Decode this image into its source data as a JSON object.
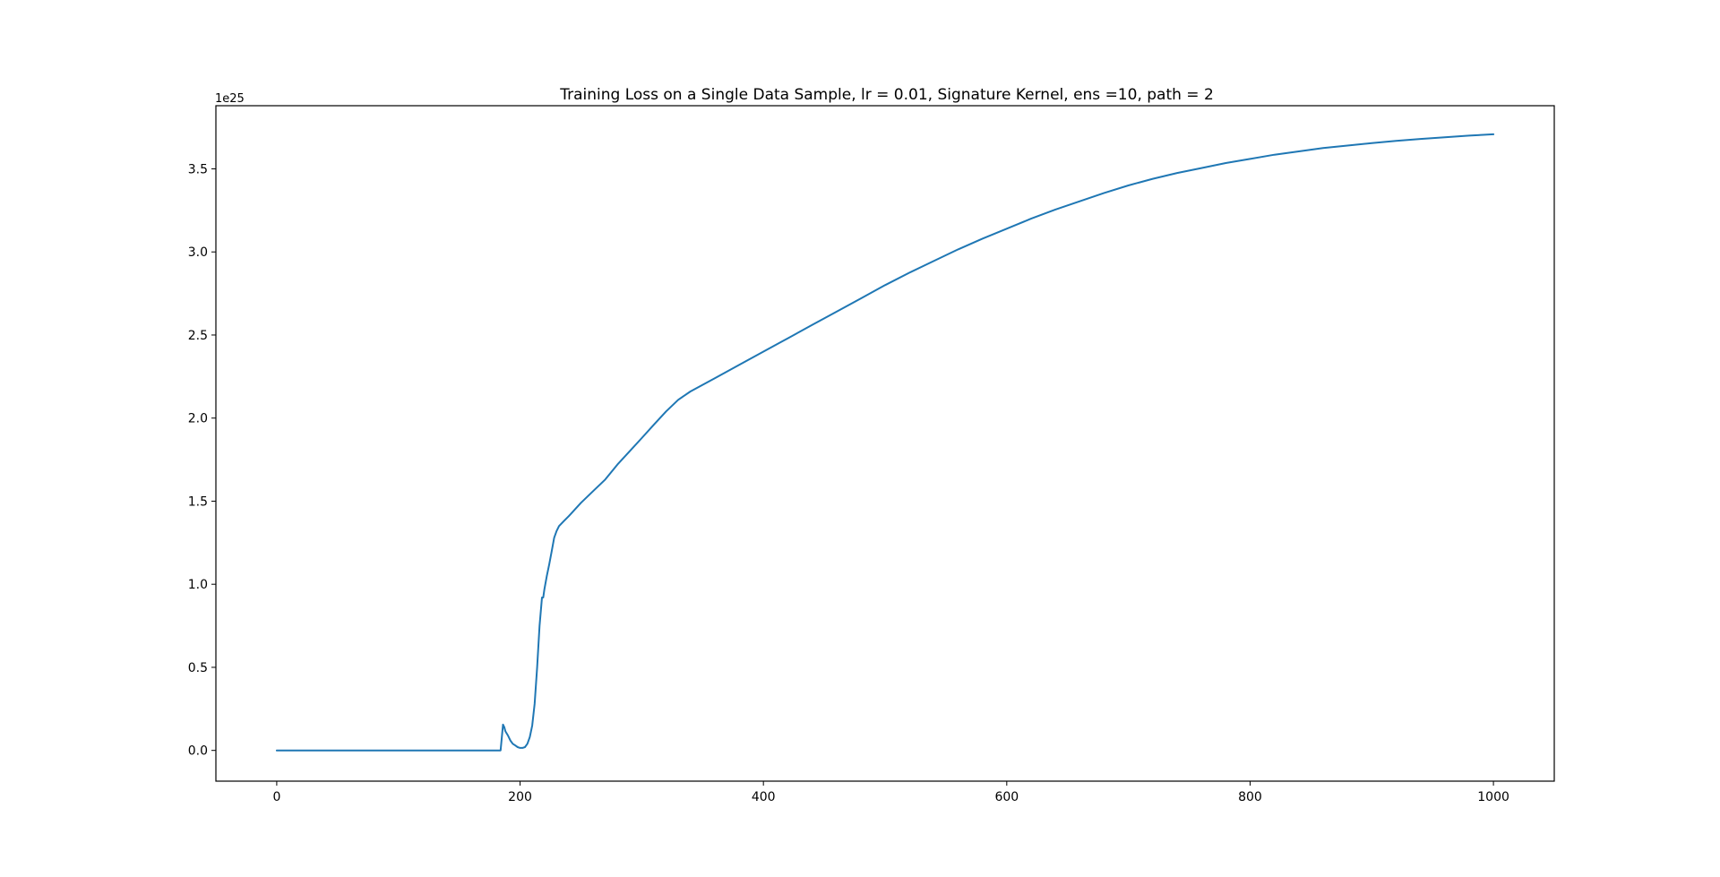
{
  "chart_data": {
    "type": "line",
    "title": "Training Loss on a Single Data Sample, lr = 0.01, Signature Kernel, ens =10, path = 2",
    "xlabel": "",
    "ylabel": "",
    "y_offset_label": "1e25",
    "xlim": [
      -50,
      1050
    ],
    "ylim": [
      -0.185,
      3.88
    ],
    "xticks": [
      0,
      200,
      400,
      600,
      800,
      1000
    ],
    "xtick_labels": [
      "0",
      "200",
      "400",
      "600",
      "800",
      "1000"
    ],
    "yticks": [
      0.0,
      0.5,
      1.0,
      1.5,
      2.0,
      2.5,
      3.0,
      3.5
    ],
    "ytick_labels": [
      "0.0",
      "0.5",
      "1.0",
      "1.5",
      "2.0",
      "2.5",
      "3.0",
      "3.5"
    ],
    "grid": false,
    "legend": "none",
    "colors": {
      "line": "#1f77b4",
      "axes": "#000000",
      "background": "#ffffff"
    },
    "series": [
      {
        "x": [
          0,
          50,
          100,
          150,
          184,
          185,
          186,
          187,
          188,
          190,
          192,
          194,
          196,
          198,
          200,
          202,
          204,
          206,
          208,
          210,
          212,
          214,
          216,
          218,
          219,
          220,
          222,
          224,
          226,
          228,
          230,
          232,
          236,
          240,
          250,
          260,
          270,
          280,
          290,
          300,
          310,
          320,
          330,
          340,
          350,
          360,
          380,
          400,
          420,
          440,
          450,
          460,
          480,
          500,
          520,
          540,
          560,
          580,
          600,
          620,
          640,
          660,
          680,
          700,
          720,
          740,
          760,
          780,
          800,
          820,
          840,
          860,
          880,
          900,
          920,
          940,
          960,
          980,
          1000
        ],
        "y": [
          0.0,
          0.0,
          0.0,
          0.0,
          0.0,
          0.08,
          0.155,
          0.14,
          0.115,
          0.09,
          0.06,
          0.04,
          0.03,
          0.02,
          0.015,
          0.015,
          0.02,
          0.04,
          0.08,
          0.15,
          0.28,
          0.5,
          0.75,
          0.92,
          0.92,
          0.97,
          1.05,
          1.12,
          1.2,
          1.28,
          1.32,
          1.35,
          1.38,
          1.41,
          1.49,
          1.56,
          1.63,
          1.72,
          1.8,
          1.88,
          1.96,
          2.04,
          2.11,
          2.16,
          2.2,
          2.24,
          2.32,
          2.4,
          2.48,
          2.56,
          2.6,
          2.64,
          2.72,
          2.8,
          2.875,
          2.945,
          3.015,
          3.08,
          3.14,
          3.2,
          3.255,
          3.305,
          3.355,
          3.4,
          3.44,
          3.475,
          3.505,
          3.535,
          3.56,
          3.585,
          3.605,
          3.625,
          3.64,
          3.655,
          3.668,
          3.68,
          3.69,
          3.7,
          3.708
        ]
      }
    ]
  }
}
